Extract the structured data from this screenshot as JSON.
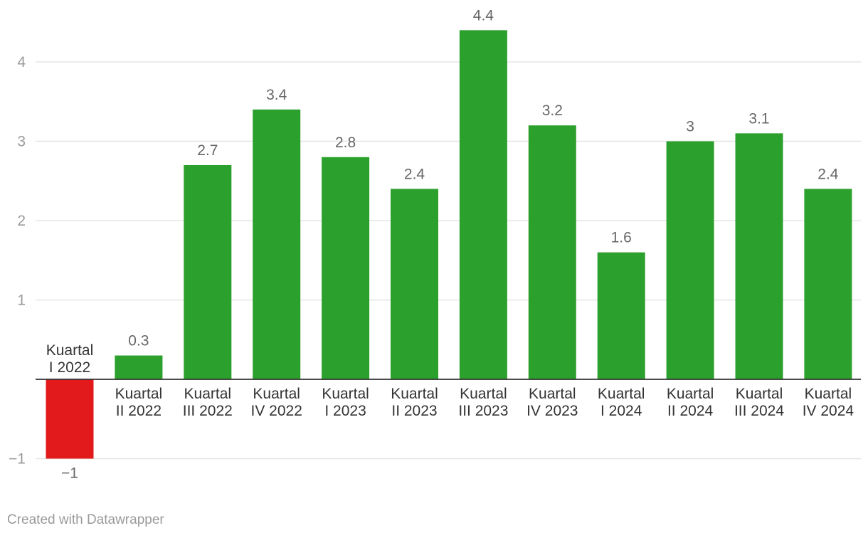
{
  "chart_data": {
    "type": "bar",
    "categories": [
      [
        "Kuartal",
        "I 2022"
      ],
      [
        "Kuartal",
        "II 2022"
      ],
      [
        "Kuartal",
        "III 2022"
      ],
      [
        "Kuartal",
        "IV 2022"
      ],
      [
        "Kuartal",
        "I 2023"
      ],
      [
        "Kuartal",
        "II 2023"
      ],
      [
        "Kuartal",
        "III 2023"
      ],
      [
        "Kuartal",
        "IV 2023"
      ],
      [
        "Kuartal",
        "I 2024"
      ],
      [
        "Kuartal",
        "II 2024"
      ],
      [
        "Kuartal",
        "III 2024"
      ],
      [
        "Kuartal",
        "IV 2024"
      ]
    ],
    "values": [
      -1,
      0.3,
      2.7,
      3.4,
      2.8,
      2.4,
      4.4,
      3.2,
      1.6,
      3,
      3.1,
      2.4
    ],
    "value_labels": [
      "−1",
      "0.3",
      "2.7",
      "3.4",
      "2.8",
      "2.4",
      "4.4",
      "3.2",
      "1.6",
      "3",
      "3.1",
      "2.4"
    ],
    "y_ticks": [
      -1,
      1,
      2,
      3,
      4
    ],
    "y_tick_labels": [
      "−1",
      "1",
      "2",
      "3",
      "4"
    ],
    "ylim": [
      -1,
      4.4
    ],
    "grid": true,
    "legend": "none",
    "colors": {
      "positive": "#2ca02c",
      "negative": "#e31a1c",
      "gridline": "#e5e5e5",
      "baseline": "#333333",
      "tick_label": "#9a9a9a",
      "value_label": "#666666",
      "category_label": "#333333"
    }
  },
  "footer": {
    "credit": "Created with Datawrapper"
  }
}
